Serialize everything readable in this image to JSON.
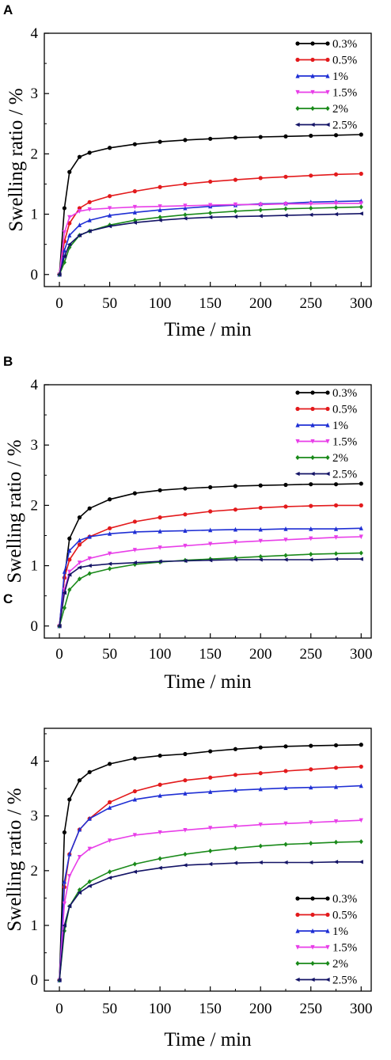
{
  "chart_data": [
    {
      "panel": "A",
      "type": "line",
      "xlabel": "Time / min",
      "ylabel": "Swelling ratio / %",
      "xlim": [
        -15,
        310
      ],
      "ylim": [
        -0.2,
        4
      ],
      "xticks": [
        0,
        50,
        100,
        150,
        200,
        250,
        300
      ],
      "yticks": [
        0,
        1,
        2,
        3,
        4
      ],
      "legend_position": "top-right",
      "series": [
        {
          "name": "0.3%",
          "color": "#000000",
          "marker": "circle",
          "x": [
            0,
            5,
            10,
            20,
            30,
            50,
            75,
            100,
            125,
            150,
            175,
            200,
            225,
            250,
            275,
            300
          ],
          "y": [
            0,
            1.1,
            1.7,
            1.95,
            2.02,
            2.1,
            2.16,
            2.2,
            2.23,
            2.25,
            2.27,
            2.28,
            2.29,
            2.3,
            2.31,
            2.32
          ]
        },
        {
          "name": "0.5%",
          "color": "#e31a1c",
          "marker": "circle",
          "x": [
            0,
            5,
            10,
            20,
            30,
            50,
            75,
            100,
            125,
            150,
            175,
            200,
            225,
            250,
            275,
            300
          ],
          "y": [
            0,
            0.55,
            0.85,
            1.1,
            1.2,
            1.3,
            1.38,
            1.45,
            1.5,
            1.54,
            1.57,
            1.6,
            1.62,
            1.64,
            1.66,
            1.67
          ]
        },
        {
          "name": "1%",
          "color": "#1f2fd4",
          "marker": "triangle-up",
          "x": [
            0,
            5,
            10,
            20,
            30,
            50,
            75,
            100,
            125,
            150,
            175,
            200,
            225,
            250,
            275,
            300
          ],
          "y": [
            0,
            0.4,
            0.65,
            0.82,
            0.9,
            0.98,
            1.03,
            1.07,
            1.1,
            1.13,
            1.15,
            1.17,
            1.18,
            1.2,
            1.21,
            1.22
          ]
        },
        {
          "name": "1.5%",
          "color": "#e83ee8",
          "marker": "triangle-down",
          "x": [
            0,
            5,
            10,
            20,
            30,
            50,
            75,
            100,
            125,
            150,
            175,
            200,
            225,
            250,
            275,
            300
          ],
          "y": [
            0,
            0.7,
            0.95,
            1.05,
            1.08,
            1.1,
            1.12,
            1.13,
            1.14,
            1.15,
            1.16,
            1.16,
            1.17,
            1.17,
            1.18,
            1.18
          ]
        },
        {
          "name": "2%",
          "color": "#1a8a1a",
          "marker": "diamond",
          "x": [
            0,
            5,
            10,
            20,
            30,
            50,
            75,
            100,
            125,
            150,
            175,
            200,
            225,
            250,
            275,
            300
          ],
          "y": [
            0,
            0.2,
            0.45,
            0.65,
            0.72,
            0.82,
            0.9,
            0.95,
            0.99,
            1.02,
            1.05,
            1.07,
            1.09,
            1.1,
            1.11,
            1.12
          ]
        },
        {
          "name": "2.5%",
          "color": "#141466",
          "marker": "left-triangle",
          "x": [
            0,
            5,
            10,
            20,
            30,
            50,
            75,
            100,
            125,
            150,
            175,
            200,
            225,
            250,
            275,
            300
          ],
          "y": [
            0,
            0.3,
            0.5,
            0.65,
            0.72,
            0.8,
            0.86,
            0.9,
            0.93,
            0.95,
            0.96,
            0.97,
            0.98,
            0.99,
            1,
            1.01
          ]
        }
      ]
    },
    {
      "panel": "B",
      "type": "line",
      "xlabel": "Time / min",
      "ylabel": "Swelling ratio / %",
      "xlim": [
        -15,
        310
      ],
      "ylim": [
        -0.2,
        4
      ],
      "xticks": [
        0,
        50,
        100,
        150,
        200,
        250,
        300
      ],
      "yticks": [
        0,
        1,
        2,
        3,
        4
      ],
      "legend_position": "top-right",
      "series": [
        {
          "name": "0.3%",
          "color": "#000000",
          "marker": "circle",
          "x": [
            0,
            5,
            10,
            20,
            30,
            50,
            75,
            100,
            125,
            150,
            175,
            200,
            225,
            250,
            275,
            300
          ],
          "y": [
            0,
            0.8,
            1.45,
            1.8,
            1.95,
            2.1,
            2.2,
            2.25,
            2.28,
            2.3,
            2.32,
            2.33,
            2.34,
            2.35,
            2.35,
            2.36
          ]
        },
        {
          "name": "0.5%",
          "color": "#e31a1c",
          "marker": "circle",
          "x": [
            0,
            5,
            10,
            20,
            30,
            50,
            75,
            100,
            125,
            150,
            175,
            200,
            225,
            250,
            275,
            300
          ],
          "y": [
            0,
            0.8,
            1.1,
            1.35,
            1.48,
            1.62,
            1.73,
            1.8,
            1.85,
            1.9,
            1.93,
            1.96,
            1.98,
            1.99,
            2,
            2
          ]
        },
        {
          "name": "1%",
          "color": "#1f2fd4",
          "marker": "triangle-up",
          "x": [
            0,
            5,
            10,
            20,
            30,
            50,
            75,
            100,
            125,
            150,
            175,
            200,
            225,
            250,
            275,
            300
          ],
          "y": [
            0,
            0.9,
            1.25,
            1.42,
            1.48,
            1.53,
            1.56,
            1.57,
            1.58,
            1.59,
            1.6,
            1.6,
            1.61,
            1.61,
            1.61,
            1.62
          ]
        },
        {
          "name": "1.5%",
          "color": "#e83ee8",
          "marker": "triangle-down",
          "x": [
            0,
            5,
            10,
            20,
            30,
            50,
            75,
            100,
            125,
            150,
            175,
            200,
            225,
            250,
            275,
            300
          ],
          "y": [
            0,
            0.6,
            0.9,
            1.05,
            1.12,
            1.2,
            1.26,
            1.3,
            1.33,
            1.36,
            1.39,
            1.41,
            1.43,
            1.45,
            1.47,
            1.48
          ]
        },
        {
          "name": "2%",
          "color": "#1a8a1a",
          "marker": "diamond",
          "x": [
            0,
            5,
            10,
            20,
            30,
            50,
            75,
            100,
            125,
            150,
            175,
            200,
            225,
            250,
            275,
            300
          ],
          "y": [
            0,
            0.3,
            0.6,
            0.78,
            0.87,
            0.95,
            1.02,
            1.06,
            1.09,
            1.11,
            1.13,
            1.15,
            1.17,
            1.19,
            1.2,
            1.21
          ]
        },
        {
          "name": "2.5%",
          "color": "#141466",
          "marker": "left-triangle",
          "x": [
            0,
            5,
            10,
            20,
            30,
            50,
            75,
            100,
            125,
            150,
            175,
            200,
            225,
            250,
            275,
            300
          ],
          "y": [
            0,
            0.55,
            0.85,
            0.97,
            1.0,
            1.03,
            1.05,
            1.07,
            1.08,
            1.09,
            1.1,
            1.1,
            1.1,
            1.1,
            1.11,
            1.11
          ]
        }
      ]
    },
    {
      "panel": "C",
      "type": "line",
      "xlabel": "Time / min",
      "ylabel": "Swelling ratio / %",
      "xlim": [
        -15,
        310
      ],
      "ylim": [
        -0.2,
        4.6
      ],
      "xticks": [
        0,
        50,
        100,
        150,
        200,
        250,
        300
      ],
      "yticks": [
        0,
        1,
        2,
        3,
        4
      ],
      "legend_position": "bottom-right",
      "series": [
        {
          "name": "0.3%",
          "color": "#000000",
          "marker": "circle",
          "x": [
            0,
            5,
            10,
            20,
            30,
            50,
            75,
            100,
            125,
            150,
            175,
            200,
            225,
            250,
            275,
            300
          ],
          "y": [
            0,
            2.7,
            3.3,
            3.65,
            3.8,
            3.95,
            4.05,
            4.1,
            4.13,
            4.18,
            4.22,
            4.25,
            4.27,
            4.28,
            4.29,
            4.3
          ]
        },
        {
          "name": "0.5%",
          "color": "#e31a1c",
          "marker": "circle",
          "x": [
            0,
            5,
            10,
            20,
            30,
            50,
            75,
            100,
            125,
            150,
            175,
            200,
            225,
            250,
            275,
            300
          ],
          "y": [
            0,
            1.7,
            2.3,
            2.75,
            2.95,
            3.25,
            3.45,
            3.57,
            3.65,
            3.7,
            3.75,
            3.78,
            3.82,
            3.85,
            3.88,
            3.9
          ]
        },
        {
          "name": "1%",
          "color": "#1f2fd4",
          "marker": "triangle-up",
          "x": [
            0,
            5,
            10,
            20,
            30,
            50,
            75,
            100,
            125,
            150,
            175,
            200,
            225,
            250,
            275,
            300
          ],
          "y": [
            0,
            1.8,
            2.3,
            2.75,
            2.95,
            3.15,
            3.3,
            3.37,
            3.41,
            3.44,
            3.47,
            3.49,
            3.51,
            3.52,
            3.53,
            3.55
          ]
        },
        {
          "name": "1.5%",
          "color": "#e83ee8",
          "marker": "triangle-down",
          "x": [
            0,
            5,
            10,
            20,
            30,
            50,
            75,
            100,
            125,
            150,
            175,
            200,
            225,
            250,
            275,
            300
          ],
          "y": [
            0,
            1.4,
            1.9,
            2.25,
            2.4,
            2.55,
            2.65,
            2.7,
            2.74,
            2.78,
            2.81,
            2.84,
            2.86,
            2.88,
            2.9,
            2.92
          ]
        },
        {
          "name": "2%",
          "color": "#1a8a1a",
          "marker": "diamond",
          "x": [
            0,
            5,
            10,
            20,
            30,
            50,
            75,
            100,
            125,
            150,
            175,
            200,
            225,
            250,
            275,
            300
          ],
          "y": [
            0,
            0.9,
            1.35,
            1.65,
            1.8,
            1.98,
            2.12,
            2.22,
            2.3,
            2.36,
            2.41,
            2.45,
            2.48,
            2.5,
            2.52,
            2.53
          ]
        },
        {
          "name": "2.5%",
          "color": "#141466",
          "marker": "left-triangle",
          "x": [
            0,
            5,
            10,
            20,
            30,
            50,
            75,
            100,
            125,
            150,
            175,
            200,
            225,
            250,
            275,
            300
          ],
          "y": [
            0,
            1.0,
            1.35,
            1.6,
            1.72,
            1.87,
            1.98,
            2.05,
            2.1,
            2.12,
            2.14,
            2.15,
            2.15,
            2.15,
            2.16,
            2.16
          ]
        }
      ]
    }
  ]
}
